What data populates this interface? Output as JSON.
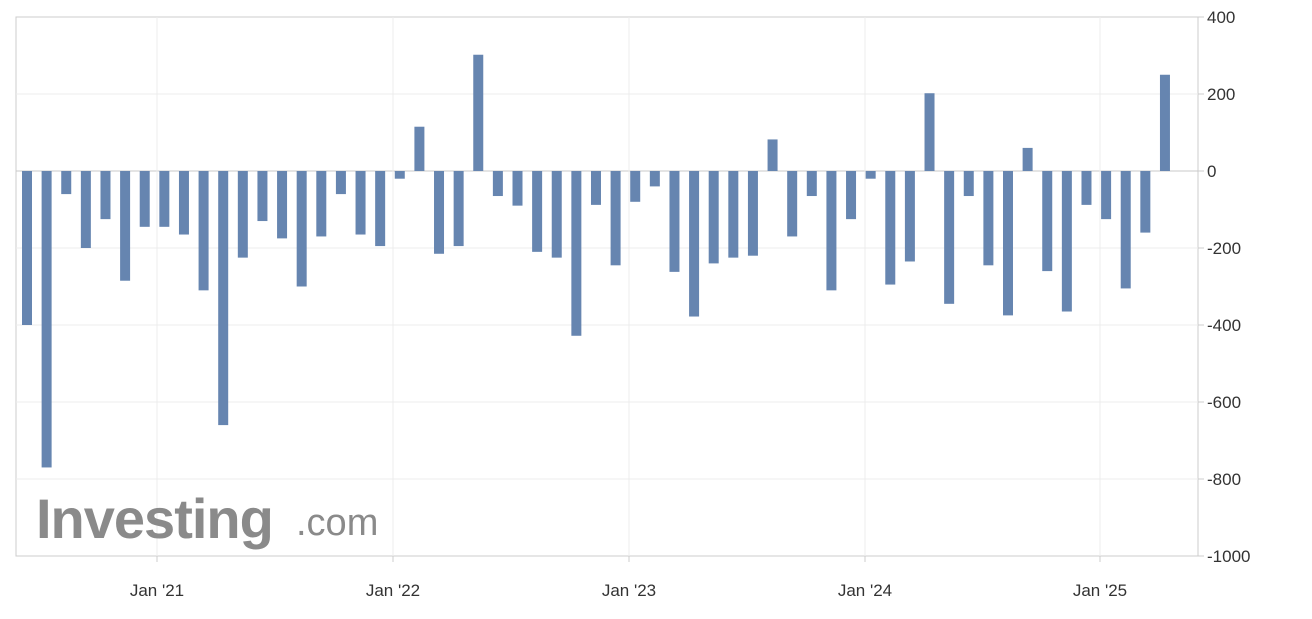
{
  "chart_data": {
    "type": "bar",
    "title": "",
    "xlabel": "",
    "ylabel": "",
    "ylim": [
      -1000,
      400
    ],
    "yticks": [
      "400",
      "200",
      "0",
      "-200",
      "-400",
      "-600",
      "-800",
      "-1000"
    ],
    "xtick_labels": [
      "Jan '21",
      "Jan '22",
      "Jan '23",
      "Jan '24",
      "Jan '25"
    ],
    "grid": true,
    "bar_color": "#6685b0",
    "values": [
      -400,
      -770,
      -60,
      -200,
      -125,
      -285,
      -145,
      -145,
      -165,
      -310,
      -660,
      -225,
      -130,
      -175,
      -300,
      -170,
      -60,
      -165,
      -195,
      -20,
      115,
      -215,
      -195,
      302,
      -65,
      -90,
      -210,
      -225,
      -428,
      -88,
      -245,
      -80,
      -40,
      -262,
      -378,
      -240,
      -225,
      -220,
      82,
      -170,
      -65,
      -310,
      -125,
      -20,
      -295,
      -235,
      202,
      -345,
      -65,
      -245,
      -375,
      60,
      -260,
      -365,
      -88,
      -125,
      -305,
      -160,
      250
    ]
  },
  "watermark": {
    "brand": "Investing",
    "suffix": ".com"
  }
}
